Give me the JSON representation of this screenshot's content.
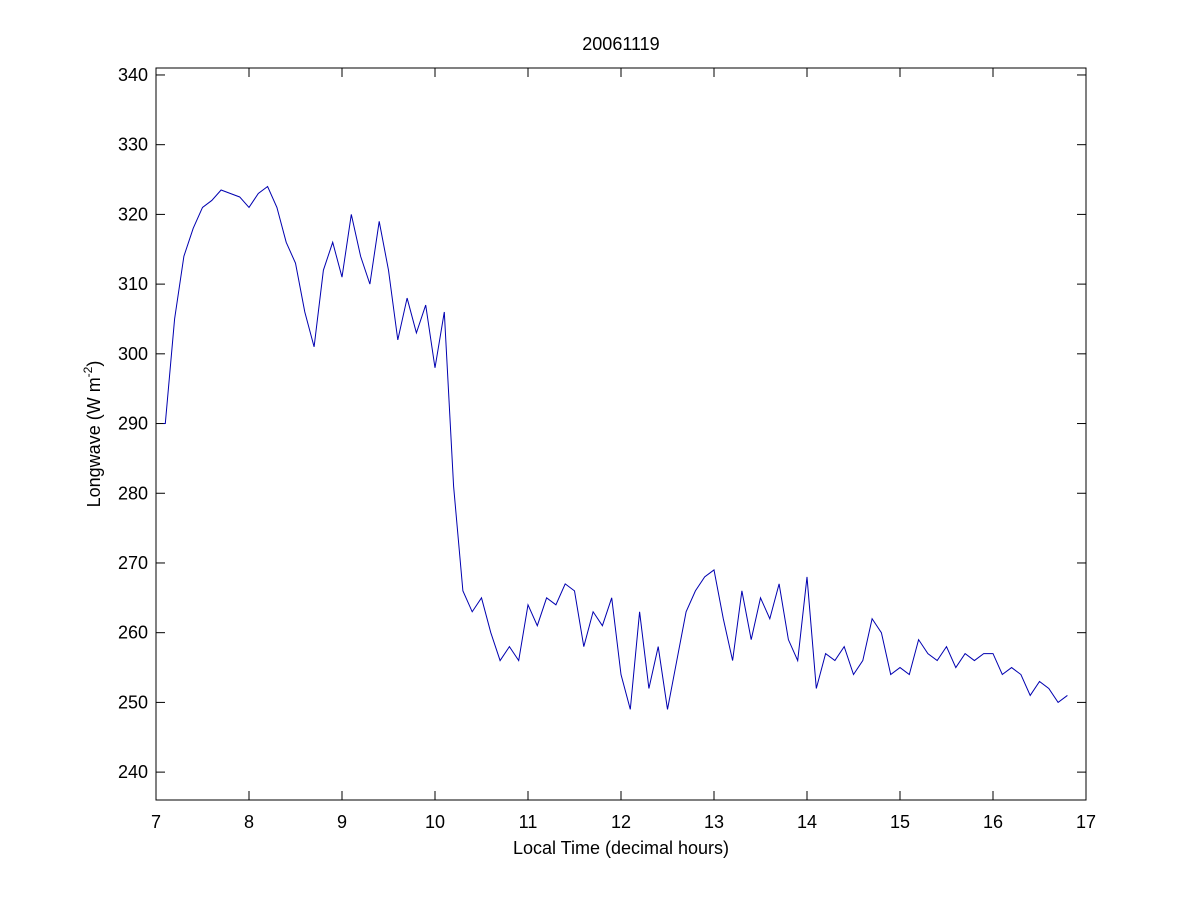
{
  "chart_data": {
    "type": "line",
    "title": "20061119",
    "x_label": "Local Time (decimal hours)",
    "y_label": {
      "text": "Longwave (W m",
      "superscript": "-2",
      "suffix": ")"
    },
    "xlim": [
      7,
      17
    ],
    "xticks": [
      7,
      8,
      9,
      10,
      11,
      12,
      13,
      14,
      15,
      16,
      17
    ],
    "ylim": [
      236,
      341
    ],
    "yticks": [
      240,
      250,
      260,
      270,
      280,
      290,
      300,
      310,
      320,
      330,
      340
    ],
    "box": true,
    "series": [
      {
        "color": "#0000b0",
        "x": [
          7.08,
          7.1,
          7.2,
          7.3,
          7.4,
          7.5,
          7.6,
          7.7,
          7.8,
          7.9,
          8.0,
          8.1,
          8.2,
          8.3,
          8.4,
          8.5,
          8.6,
          8.7,
          8.8,
          8.9,
          9.0,
          9.1,
          9.2,
          9.3,
          9.4,
          9.5,
          9.6,
          9.7,
          9.8,
          9.9,
          10.0,
          10.1,
          10.2,
          10.3,
          10.4,
          10.5,
          10.6,
          10.7,
          10.8,
          10.9,
          11.0,
          11.1,
          11.2,
          11.3,
          11.4,
          11.5,
          11.6,
          11.7,
          11.8,
          11.9,
          12.0,
          12.1,
          12.2,
          12.3,
          12.4,
          12.5,
          12.6,
          12.7,
          12.8,
          12.9,
          13.0,
          13.1,
          13.2,
          13.3,
          13.4,
          13.5,
          13.6,
          13.7,
          13.8,
          13.9,
          14.0,
          14.1,
          14.2,
          14.3,
          14.4,
          14.5,
          14.6,
          14.7,
          14.8,
          14.9,
          15.0,
          15.1,
          15.2,
          15.3,
          15.4,
          15.5,
          15.6,
          15.7,
          15.8,
          15.9,
          16.0,
          16.1,
          16.2,
          16.3,
          16.4,
          16.5,
          16.6,
          16.7,
          16.8
        ],
        "values": [
          290,
          290,
          305,
          314,
          318,
          321,
          322,
          323.5,
          323,
          322.5,
          321,
          323,
          324,
          321,
          316,
          313,
          306,
          301,
          312,
          316,
          311,
          320,
          314,
          310,
          319,
          312,
          302,
          308,
          303,
          307,
          298,
          306,
          281,
          266,
          263,
          265,
          260,
          256,
          258,
          256,
          264,
          261,
          265,
          264,
          267,
          266,
          258,
          263,
          261,
          265,
          254,
          249,
          263,
          252,
          258,
          249,
          256,
          263,
          266,
          268,
          269,
          262,
          256,
          266,
          259,
          265,
          262,
          267,
          259,
          256,
          268,
          252,
          257,
          256,
          258,
          254,
          256,
          262,
          260,
          254,
          255,
          254,
          259,
          257,
          256,
          258,
          255,
          257,
          256,
          257,
          257,
          254,
          255,
          254,
          251,
          253,
          252,
          250,
          251
        ]
      }
    ]
  }
}
